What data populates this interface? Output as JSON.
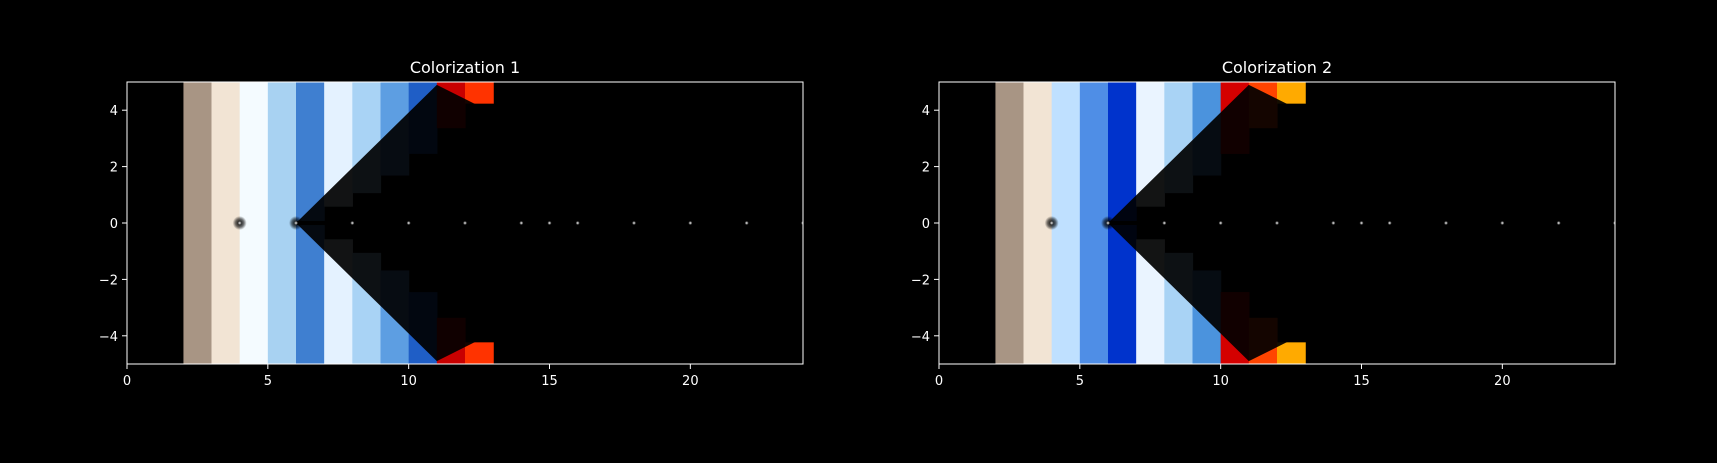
{
  "chart_data": [
    {
      "type": "heatmap",
      "title": "Colorization 1",
      "xlim": [
        0,
        24
      ],
      "ylim": [
        -5,
        5
      ],
      "xticks": [
        0,
        5,
        10,
        15,
        20
      ],
      "yticks": [
        4,
        2,
        0,
        -2,
        -4
      ],
      "xtick_labels": [
        "0",
        "5",
        "10",
        "15",
        "20"
      ],
      "ytick_labels": [
        "4",
        "2",
        "0",
        "−2",
        "−4"
      ],
      "bands": [
        {
          "x": [
            2,
            3
          ],
          "color": "#a89584",
          "spread": 0
        },
        {
          "x": [
            3,
            4
          ],
          "color": "#f2e4d4",
          "spread": 0
        },
        {
          "x": [
            4,
            5
          ],
          "color": "#f4fbff",
          "spread": 0
        },
        {
          "x": [
            5,
            6
          ],
          "color": "#a8d2f2",
          "spread": 0
        },
        {
          "x": [
            6,
            7
          ],
          "color": "#3f7fd0",
          "spread": 0.6
        },
        {
          "x": [
            7,
            8
          ],
          "color": "#e4f2ff",
          "spread": 1.7
        },
        {
          "x": [
            8,
            9
          ],
          "color": "#a9d3f5",
          "spread": 2.3
        },
        {
          "x": [
            9,
            10
          ],
          "color": "#5d9ee2",
          "spread": 2.9
        },
        {
          "x": [
            10,
            11
          ],
          "color": "#1f5ec6",
          "spread": 3.5
        },
        {
          "x": [
            11,
            12
          ],
          "color": "#c80000",
          "spread": 4.1
        },
        {
          "x": [
            12,
            13
          ],
          "color": "#ff3300",
          "spread": 4.6
        },
        {
          "x": [
            13,
            14
          ],
          "color": "#ff8c00",
          "spread": 5.0
        },
        {
          "x": [
            14,
            15
          ],
          "color": "#ffcc00",
          "spread": 5.0
        },
        {
          "x": [
            15,
            16
          ],
          "color": "#00e5c0",
          "spread": 5.0
        },
        {
          "x": [
            16,
            17
          ],
          "color": "#00bfff",
          "spread": 5.0
        },
        {
          "x": [
            17,
            18
          ],
          "color": "#007fff",
          "spread": 5.0
        },
        {
          "x": [
            18,
            19
          ],
          "color": "#0033e0",
          "spread": 5.0
        },
        {
          "x": [
            19,
            20
          ],
          "color": "#0000b0",
          "spread": 5.0
        },
        {
          "x": [
            20,
            21
          ],
          "color": "#3300a0",
          "spread": 5.0
        },
        {
          "x": [
            21,
            22
          ],
          "color": "#ff1a00",
          "spread": 5.0
        },
        {
          "x": [
            22,
            23
          ],
          "color": "#c80000",
          "spread": 5.0
        },
        {
          "x": [
            23,
            24
          ],
          "color": "#ff3300",
          "spread": 5.0
        }
      ]
    },
    {
      "type": "heatmap",
      "title": "Colorization 2",
      "xlim": [
        0,
        24
      ],
      "ylim": [
        -5,
        5
      ],
      "xticks": [
        0,
        5,
        10,
        15,
        20
      ],
      "yticks": [
        4,
        2,
        0,
        -2,
        -4
      ],
      "xtick_labels": [
        "0",
        "5",
        "10",
        "15",
        "20"
      ],
      "ytick_labels": [
        "4",
        "2",
        "0",
        "−2",
        "−4"
      ],
      "bands": [
        {
          "x": [
            2,
            3
          ],
          "color": "#a89584",
          "spread": 0
        },
        {
          "x": [
            3,
            4
          ],
          "color": "#f2e4d4",
          "spread": 0
        },
        {
          "x": [
            4,
            5
          ],
          "color": "#bfe0ff",
          "spread": 0
        },
        {
          "x": [
            5,
            6
          ],
          "color": "#4f8ee6",
          "spread": 0
        },
        {
          "x": [
            6,
            7
          ],
          "color": "#0033cc",
          "spread": 0.6
        },
        {
          "x": [
            7,
            8
          ],
          "color": "#eaf4ff",
          "spread": 1.7
        },
        {
          "x": [
            8,
            9
          ],
          "color": "#a9d3f5",
          "spread": 2.3
        },
        {
          "x": [
            9,
            10
          ],
          "color": "#4b93dd",
          "spread": 2.9
        },
        {
          "x": [
            10,
            11
          ],
          "color": "#d40000",
          "spread": 3.5
        },
        {
          "x": [
            11,
            12
          ],
          "color": "#ff4400",
          "spread": 4.1
        },
        {
          "x": [
            12,
            13
          ],
          "color": "#ffaa00",
          "spread": 4.6
        },
        {
          "x": [
            13,
            14
          ],
          "color": "#66ff66",
          "spread": 5.0
        },
        {
          "x": [
            14,
            15
          ],
          "color": "#00e0e0",
          "spread": 5.0
        },
        {
          "x": [
            15,
            16
          ],
          "color": "#00aaff",
          "spread": 5.0
        },
        {
          "x": [
            16,
            17
          ],
          "color": "#0066ff",
          "spread": 5.0
        },
        {
          "x": [
            17,
            18
          ],
          "color": "#0022dd",
          "spread": 5.0
        },
        {
          "x": [
            18,
            19
          ],
          "color": "#b00000",
          "spread": 5.0
        },
        {
          "x": [
            19,
            20
          ],
          "color": "#ff0000",
          "spread": 5.0
        },
        {
          "x": [
            20,
            21
          ],
          "color": "#ff2a00",
          "spread": 5.0
        },
        {
          "x": [
            21,
            22
          ],
          "color": "#ff6a00",
          "spread": 5.0
        },
        {
          "x": [
            22,
            23
          ],
          "color": "#ffd000",
          "spread": 5.0
        },
        {
          "x": [
            23,
            24
          ],
          "color": "#22dd22",
          "spread": 5.0
        }
      ]
    }
  ]
}
